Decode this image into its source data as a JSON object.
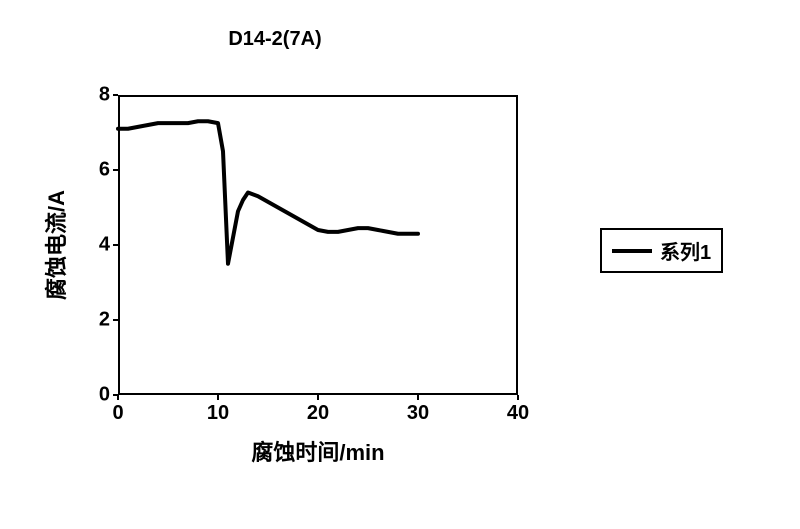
{
  "chart": {
    "type": "line",
    "title": "D14-2(7A)",
    "title_fontsize": 20,
    "xlabel": "腐蚀时间/min",
    "ylabel": "腐蚀电流/A",
    "label_fontsize": 22,
    "tick_fontsize": 20,
    "xlim": [
      0,
      40
    ],
    "ylim": [
      0,
      8
    ],
    "xticks": [
      0,
      10,
      20,
      30,
      40
    ],
    "yticks": [
      0,
      2,
      4,
      6,
      8
    ],
    "background_color": "#ffffff",
    "axis_color": "#000000",
    "series": [
      {
        "name": "系列1",
        "color": "#000000",
        "line_width": 4,
        "x": [
          0,
          1,
          2,
          3,
          4,
          5,
          6,
          7,
          8,
          9,
          10,
          10.5,
          11,
          11.5,
          12,
          12.5,
          13,
          14,
          15,
          16,
          17,
          18,
          19,
          20,
          21,
          22,
          23,
          24,
          25,
          26,
          27,
          28,
          29,
          30
        ],
        "y": [
          7.1,
          7.1,
          7.15,
          7.2,
          7.25,
          7.25,
          7.25,
          7.25,
          7.3,
          7.3,
          7.25,
          6.5,
          3.5,
          4.2,
          4.9,
          5.2,
          5.4,
          5.3,
          5.15,
          5.0,
          4.85,
          4.7,
          4.55,
          4.4,
          4.35,
          4.35,
          4.4,
          4.45,
          4.45,
          4.4,
          4.35,
          4.3,
          4.3,
          4.3
        ]
      }
    ],
    "legend": {
      "position": "right",
      "border_color": "#000000",
      "items": [
        "系列1"
      ]
    }
  }
}
